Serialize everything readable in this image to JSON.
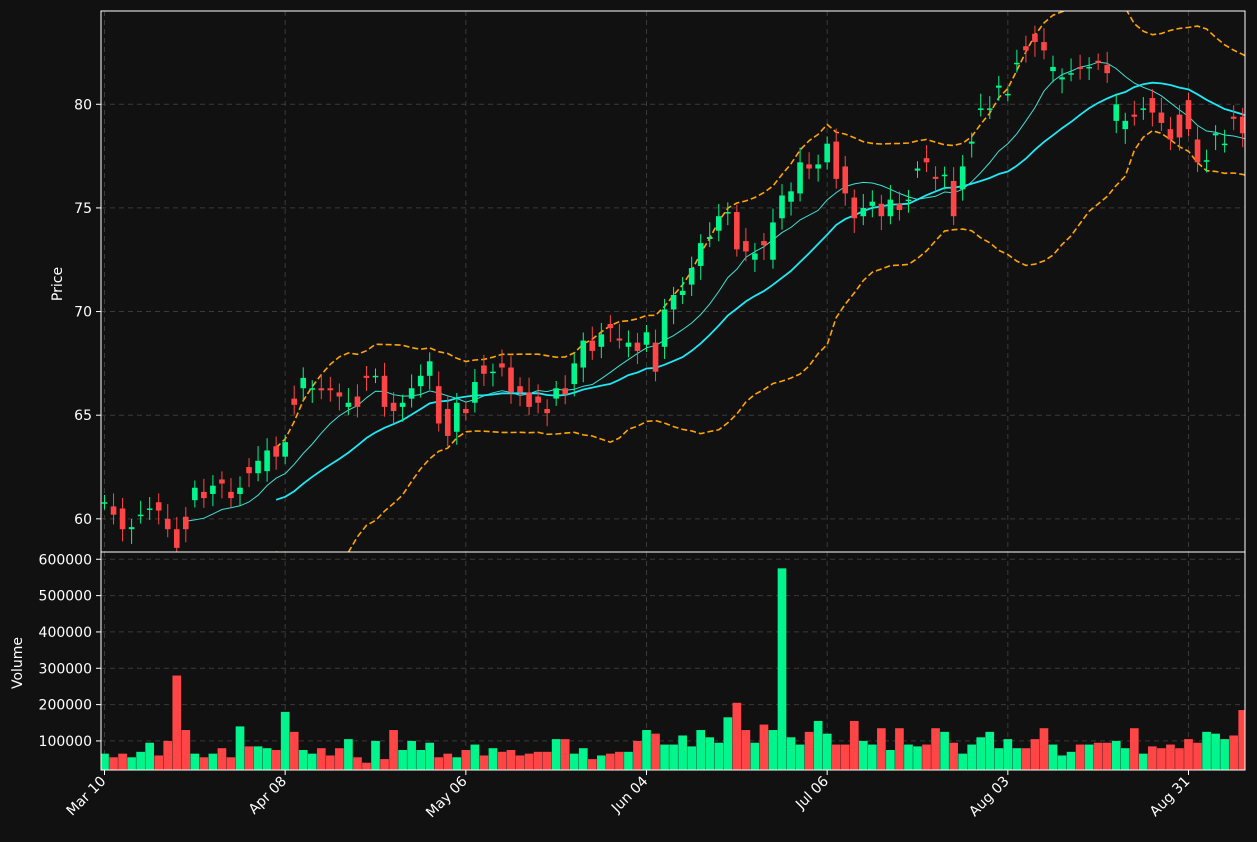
{
  "chart_data": {
    "type": "candlestick",
    "price_panel": {
      "ylabel": "Price",
      "ylim": [
        58.4,
        84.5
      ],
      "yticks": [
        60,
        65,
        70,
        75,
        80
      ]
    },
    "volume_panel": {
      "ylabel": "Volume",
      "ylim": [
        20000,
        620000
      ],
      "yticks": [
        100000,
        200000,
        300000,
        400000,
        500000,
        600000
      ],
      "ytick_labels": [
        "100000",
        "200000",
        "300000",
        "400000",
        "500000",
        "600000"
      ]
    },
    "x_tick_labels": [
      "Mar 10",
      "Apr 08",
      "May 06",
      "Jun 04",
      "Jul 06",
      "Aug 03",
      "Aug 31"
    ],
    "x_tick_index": [
      0,
      20,
      40,
      60,
      80,
      100,
      120
    ],
    "grid": true,
    "colors": {
      "background": "#111111",
      "up": "#00f58c",
      "down": "#ff4545",
      "ma_short": "#3de0d2",
      "ma_long": "#1ee8f5",
      "bollinger": "#ffa500",
      "grid": "#3a3a3a",
      "axis": "#ffffff"
    },
    "series": [
      {
        "kind": "ohlc",
        "close": [
          60.8,
          60.2,
          59.5,
          59.6,
          60.2,
          60.5,
          60.4,
          59.5,
          58.6,
          59.5,
          61.5,
          61.0,
          61.6,
          61.7,
          61.0,
          61.5,
          62.2,
          62.8,
          63.3,
          63.0,
          63.7,
          65.5,
          66.8,
          66.3,
          66.2,
          66.2,
          65.9,
          65.6,
          65.4,
          66.8,
          66.9,
          65.4,
          65.2,
          65.6,
          66.3,
          66.9,
          67.6,
          64.6,
          64.0,
          65.6,
          65.1,
          66.6,
          67.0,
          67.1,
          67.3,
          66.1,
          66.1,
          65.4,
          65.6,
          65.1,
          66.3,
          66.0,
          67.5,
          68.6,
          68.1,
          68.9,
          69.2,
          68.6,
          68.5,
          68.1,
          69.0,
          67.1,
          70.1,
          70.8,
          71.0,
          72.1,
          73.3,
          73.6,
          74.6,
          74.8,
          73.0,
          72.9,
          72.8,
          73.2,
          74.3,
          75.6,
          75.8,
          77.2,
          76.9,
          77.1,
          78.1,
          76.4,
          75.7,
          74.5,
          75.0,
          75.3,
          74.6,
          75.4,
          74.9,
          75.4,
          76.9,
          77.2,
          76.4,
          76.6,
          74.6,
          77.0,
          78.2,
          79.8,
          79.8,
          80.9,
          80.5,
          82.0,
          82.6,
          83.0,
          82.6,
          81.8,
          81.3,
          81.5,
          81.7,
          81.8,
          82.0,
          81.5,
          80.0,
          79.2,
          79.4,
          79.8,
          79.6,
          79.1,
          78.3,
          78.4,
          78.8,
          77.2,
          77.3,
          78.6,
          78.1,
          79.3,
          78.6,
          77.8,
          77.3
        ],
        "open": [
          60.8,
          60.6,
          60.5,
          59.5,
          60.2,
          60.5,
          60.8,
          60.0,
          59.5,
          60.1,
          60.9,
          61.3,
          61.2,
          61.9,
          61.3,
          61.2,
          62.5,
          62.2,
          62.3,
          63.5,
          63.0,
          65.8,
          66.3,
          66.3,
          66.3,
          66.3,
          66.1,
          65.4,
          65.9,
          66.9,
          66.9,
          66.9,
          65.6,
          65.4,
          65.8,
          66.4,
          66.9,
          66.4,
          65.3,
          64.2,
          65.3,
          65.6,
          67.4,
          67.1,
          67.5,
          67.3,
          66.4,
          66.1,
          65.9,
          65.3,
          65.8,
          66.3,
          66.5,
          67.3,
          68.6,
          68.3,
          69.4,
          68.7,
          68.3,
          68.5,
          68.4,
          68.5,
          68.3,
          70.1,
          70.8,
          71.3,
          72.2,
          73.5,
          73.9,
          74.8,
          74.8,
          73.4,
          72.5,
          73.4,
          72.5,
          74.5,
          75.3,
          75.7,
          77.1,
          76.9,
          77.2,
          78.2,
          77.0,
          75.5,
          74.6,
          75.1,
          75.2,
          74.6,
          75.2,
          75.4,
          76.8,
          77.4,
          76.5,
          76.6,
          76.3,
          75.9,
          78.1,
          79.8,
          79.8,
          80.8,
          80.5,
          82.0,
          82.8,
          83.4,
          83.0,
          81.6,
          81.2,
          81.5,
          81.8,
          81.8,
          82.1,
          81.9,
          79.2,
          78.8,
          79.5,
          79.8,
          80.3,
          79.6,
          78.8,
          79.5,
          80.2,
          78.3,
          77.3,
          78.5,
          78.1,
          79.4,
          79.4,
          78.6,
          77.2
        ]
      },
      {
        "kind": "volume",
        "values": [
          65000,
          55000,
          65000,
          55000,
          70000,
          95000,
          60000,
          100000,
          280000,
          130000,
          65000,
          55000,
          65000,
          80000,
          55000,
          140000,
          85000,
          85000,
          80000,
          75000,
          180000,
          125000,
          75000,
          65000,
          80000,
          60000,
          80000,
          105000,
          55000,
          40000,
          100000,
          50000,
          130000,
          75000,
          100000,
          75000,
          95000,
          55000,
          65000,
          55000,
          75000,
          90000,
          60000,
          80000,
          70000,
          75000,
          60000,
          65000,
          70000,
          70000,
          105000,
          105000,
          65000,
          80000,
          50000,
          60000,
          65000,
          70000,
          70000,
          100000,
          130000,
          120000,
          90000,
          90000,
          115000,
          85000,
          130000,
          110000,
          95000,
          165000,
          205000,
          130000,
          95000,
          145000,
          130000,
          575000,
          110000,
          90000,
          125000,
          155000,
          120000,
          90000,
          90000,
          155000,
          100000,
          90000,
          135000,
          75000,
          135000,
          90000,
          85000,
          90000,
          135000,
          125000,
          95000,
          65000,
          90000,
          110000,
          125000,
          80000,
          105000,
          80000,
          80000,
          105000,
          135000,
          90000,
          60000,
          70000,
          90000,
          90000,
          95000,
          95000,
          100000,
          80000,
          135000,
          65000,
          85000,
          80000,
          90000,
          80000,
          105000,
          95000,
          125000,
          120000,
          105000,
          115000,
          185000
        ]
      }
    ],
    "overlays": [
      "moving-average-short",
      "moving-average-long",
      "bollinger-upper",
      "bollinger-lower"
    ]
  }
}
